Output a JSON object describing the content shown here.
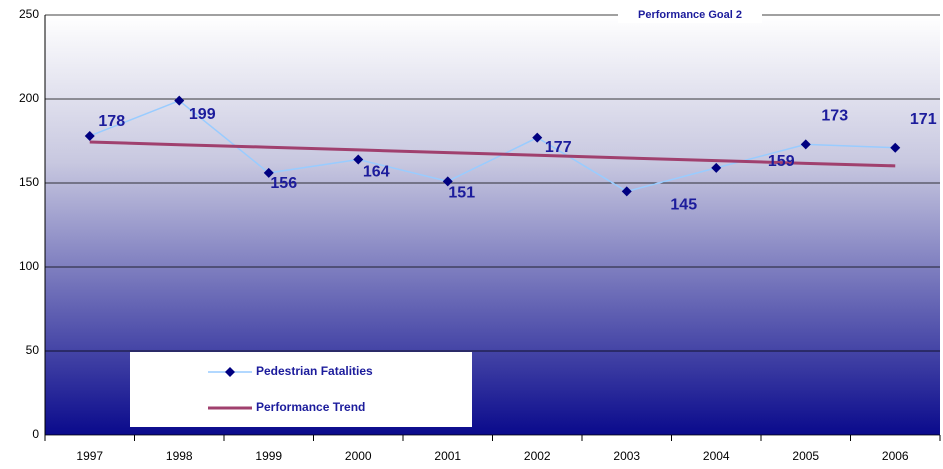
{
  "chart_data": {
    "type": "line",
    "title": "Performance Goal 2",
    "categories": [
      "1997",
      "1998",
      "1999",
      "2000",
      "2001",
      "2002",
      "2003",
      "2004",
      "2005",
      "2006"
    ],
    "series": [
      {
        "name": "Pedestrian Fatalities",
        "color": "#99ccff",
        "marker_color": "#000080",
        "values": [
          178,
          199,
          156,
          164,
          151,
          177,
          145,
          159,
          173,
          171
        ]
      },
      {
        "name": "Performance Trend",
        "color": "#a0406e",
        "values": [
          174.4,
          172.8,
          171.3,
          169.7,
          168.1,
          166.5,
          164.9,
          163.3,
          161.7,
          160.2
        ]
      }
    ],
    "ylim": [
      0,
      250
    ],
    "yticks": [
      0,
      50,
      100,
      150,
      200,
      250
    ],
    "grid": true
  }
}
